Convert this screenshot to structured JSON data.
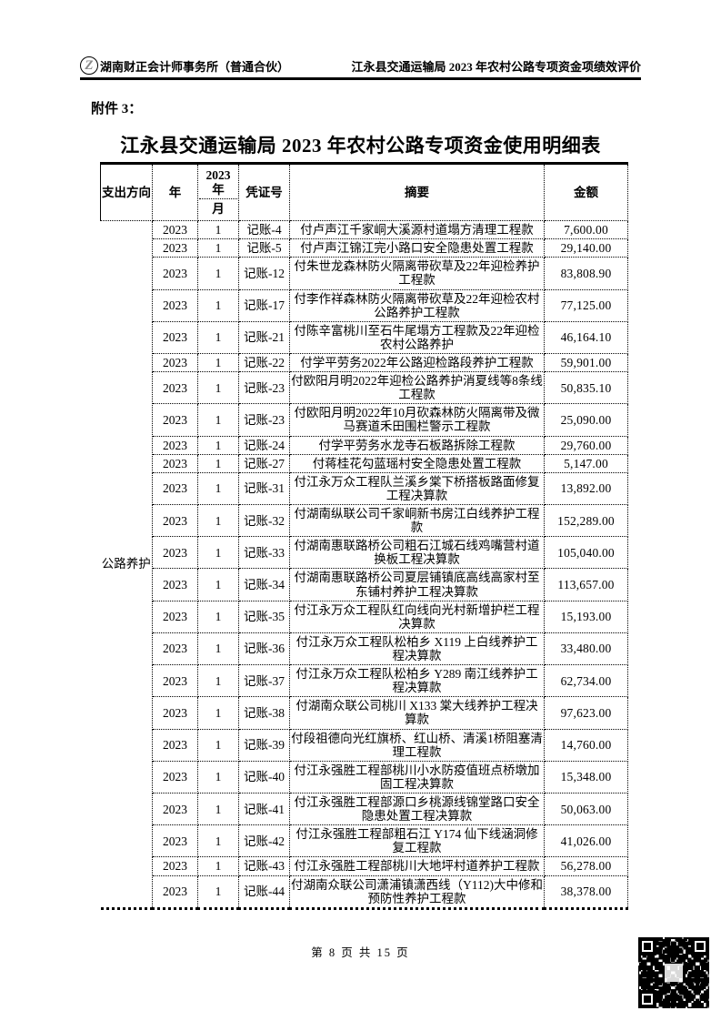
{
  "header": {
    "logo_letter": "Z",
    "firm_name": "湖南财正会计师事务所（普通合伙）",
    "report_name": "江永县交通运输局 2023 年农村公路专项资金项绩效评价"
  },
  "attachment_label": "附件 3：",
  "doc_title": "江永县交通运输局 2023 年农村公路专项资金使用明细表",
  "table": {
    "headers": {
      "direction": "支出方向",
      "year": "年",
      "month_top_line1": "2023",
      "month_top_line2": "年",
      "month_bottom": "月",
      "voucher": "凭证号",
      "summary": "摘要",
      "amount": "金额"
    },
    "direction_value": "公路养护",
    "rows": [
      {
        "year": "2023",
        "month": "1",
        "voucher": "记账-4",
        "summary": "付卢声江千家峒大溪源村道塌方清理工程款",
        "amount": "7,600.00"
      },
      {
        "year": "2023",
        "month": "1",
        "voucher": "记账-5",
        "summary": "付卢声江锦江完小路口安全隐患处置工程款",
        "amount": "29,140.00"
      },
      {
        "year": "2023",
        "month": "1",
        "voucher": "记账-12",
        "summary": "付朱世龙森林防火隔离带砍草及22年迎检养护工程款",
        "amount": "83,808.90"
      },
      {
        "year": "2023",
        "month": "1",
        "voucher": "记账-17",
        "summary": "付李作祥森林防火隔离带砍草及22年迎检农村公路养护工程款",
        "amount": "77,125.00"
      },
      {
        "year": "2023",
        "month": "1",
        "voucher": "记账-21",
        "summary": "付陈辛富桃川至石牛尾塌方工程款及22年迎检农村公路养护",
        "amount": "46,164.10"
      },
      {
        "year": "2023",
        "month": "1",
        "voucher": "记账-22",
        "summary": "付学平劳务2022年公路迎检路段养护工程款",
        "amount": "59,901.00"
      },
      {
        "year": "2023",
        "month": "1",
        "voucher": "记账-23",
        "summary": "付欧阳月明2022年迎检公路养护消夏线等8条线工程款",
        "amount": "50,835.10"
      },
      {
        "year": "2023",
        "month": "1",
        "voucher": "记账-23",
        "summary": "付欧阳月明2022年10月砍森林防火隔离带及微马赛道禾田围栏警示工程款",
        "amount": "25,090.00"
      },
      {
        "year": "2023",
        "month": "1",
        "voucher": "记账-24",
        "summary": "付学平劳务水龙寺石板路拆除工程款",
        "amount": "29,760.00"
      },
      {
        "year": "2023",
        "month": "1",
        "voucher": "记账-27",
        "summary": "付蒋桂花勾蓝瑶村安全隐患处置工程款",
        "amount": "5,147.00"
      },
      {
        "year": "2023",
        "month": "1",
        "voucher": "记账-31",
        "summary": "付江永万众工程队兰溪乡棠下桥搭板路面修复工程决算款",
        "amount": "13,892.00"
      },
      {
        "year": "2023",
        "month": "1",
        "voucher": "记账-32",
        "summary": "付湖南纵联公司千家峒新书房江白线养护工程款",
        "amount": "152,289.00"
      },
      {
        "year": "2023",
        "month": "1",
        "voucher": "记账-33",
        "summary": "付湖南惠联路桥公司粗石江城石线鸡嘴营村道换板工程决算款",
        "amount": "105,040.00"
      },
      {
        "year": "2023",
        "month": "1",
        "voucher": "记账-34",
        "summary": "付湖南惠联路桥公司夏层铺镇底高线高家村至东铺村养护工程决算款",
        "amount": "113,657.00"
      },
      {
        "year": "2023",
        "month": "1",
        "voucher": "记账-35",
        "summary": "付江永万众工程队红向线向光村新增护栏工程决算款",
        "amount": "15,193.00"
      },
      {
        "year": "2023",
        "month": "1",
        "voucher": "记账-36",
        "summary": "付江永万众工程队松柏乡 X119 上白线养护工程决算款",
        "amount": "33,480.00"
      },
      {
        "year": "2023",
        "month": "1",
        "voucher": "记账-37",
        "summary": "付江永万众工程队松柏乡 Y289 南江线养护工程决算款",
        "amount": "62,734.00"
      },
      {
        "year": "2023",
        "month": "1",
        "voucher": "记账-38",
        "summary": "付湖南众联公司桃川 X133 棠大线养护工程决算款",
        "amount": "97,623.00"
      },
      {
        "year": "2023",
        "month": "1",
        "voucher": "记账-39",
        "summary": "付段祖德向光红旗桥、红山桥、清溪1桥阻塞清理工程款",
        "amount": "14,760.00"
      },
      {
        "year": "2023",
        "month": "1",
        "voucher": "记账-40",
        "summary": "付江永强胜工程部桃川小水防疫值班点桥墩加固工程决算款",
        "amount": "15,348.00"
      },
      {
        "year": "2023",
        "month": "1",
        "voucher": "记账-41",
        "summary": "付江永强胜工程部源口乡桃源线锦堂路口安全隐患处置工程决算款",
        "amount": "50,063.00"
      },
      {
        "year": "2023",
        "month": "1",
        "voucher": "记账-42",
        "summary": "付江永强胜工程部粗石江 Y174 仙下线涵洞修复工程款",
        "amount": "41,026.00"
      },
      {
        "year": "2023",
        "month": "1",
        "voucher": "记账-43",
        "summary": "付江永强胜工程部桃川大地坪村道养护工程款",
        "amount": "56,278.00"
      },
      {
        "year": "2023",
        "month": "1",
        "voucher": "记账-44",
        "summary": "付湖南众联公司潇浦镇潇西线（Y112)大中修和预防性养护工程款",
        "amount": "38,378.00"
      }
    ]
  },
  "footer": {
    "page_text": "第 8 页 共 15 页"
  },
  "colors": {
    "text": "#000000",
    "background": "#ffffff"
  }
}
